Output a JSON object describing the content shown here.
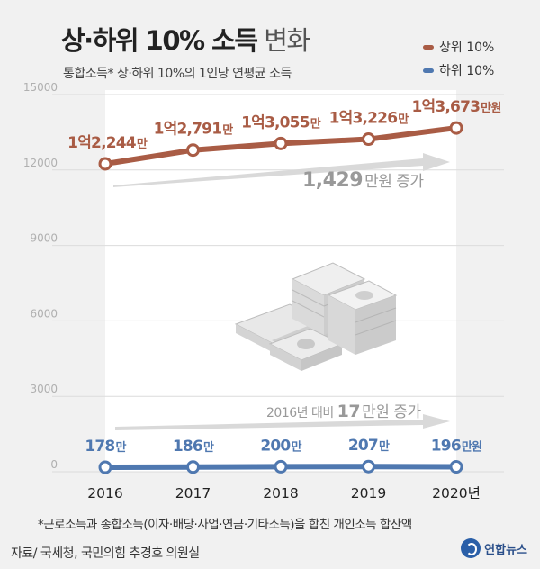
{
  "header": {
    "title_bold": "상·하위 10% 소득",
    "title_light": " 변화",
    "subtitle": "통합소득* 상·하위 10%의 1인당 연평균 소득"
  },
  "legend": [
    {
      "label": "상위 10%",
      "color": "#a95c45"
    },
    {
      "label": "하위 10%",
      "color": "#4f78b0"
    }
  ],
  "chart_data": {
    "type": "line",
    "categories": [
      "2016",
      "2017",
      "2018",
      "2019",
      "2020년"
    ],
    "yticks": [
      "15000",
      "12000",
      "9000",
      "6000",
      "3000",
      "0"
    ],
    "ylim": [
      0,
      15000
    ],
    "series": [
      {
        "name": "상위 10%",
        "color": "#a95c45",
        "values": [
          12244,
          12791,
          13055,
          13226,
          13673
        ],
        "labels": [
          {
            "num": "1억2,244",
            "unit": "만"
          },
          {
            "num": "1억2,791",
            "unit": "만"
          },
          {
            "num": "1억3,055",
            "unit": "만"
          },
          {
            "num": "1억3,226",
            "unit": "만"
          },
          {
            "num": "1억3,673",
            "unit": "만원"
          }
        ]
      },
      {
        "name": "하위 10%",
        "color": "#4f78b0",
        "values": [
          178,
          186,
          200,
          207,
          196
        ],
        "labels": [
          {
            "num": "178",
            "unit": "만"
          },
          {
            "num": "186",
            "unit": "만"
          },
          {
            "num": "200",
            "unit": "만"
          },
          {
            "num": "207",
            "unit": "만"
          },
          {
            "num": "196",
            "unit": "만원"
          }
        ]
      }
    ],
    "annotations": {
      "upper": {
        "num": "1,429",
        "unit": "만원 증가"
      },
      "lower": {
        "prefix": "2016년 대비 ",
        "num": "17",
        "unit": "만원 증가"
      }
    }
  },
  "footnote": "*근로소득과 종합소득(이자·배당·사업·연금·기타소득)을 합친 개인소득 합산액",
  "source": "자료/ 국세청, 국민의힘 추경호 의원실",
  "logo": "연합뉴스"
}
